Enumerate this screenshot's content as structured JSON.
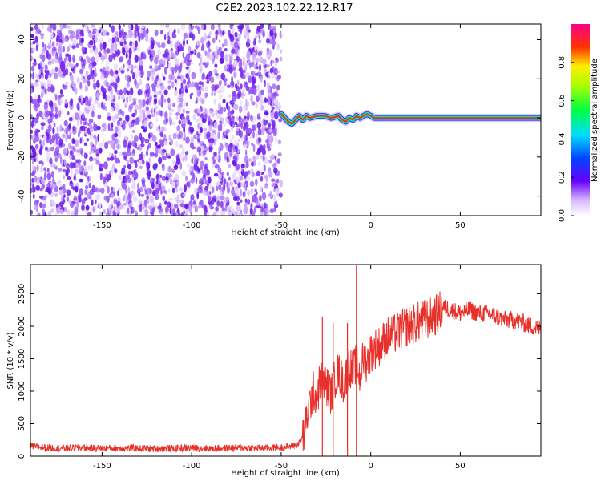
{
  "title": "C2E2.2023.102.22.12.R17",
  "colors": {
    "signal_line": "#e8302a",
    "snr_line": "#e8302a",
    "noise_dot": "#7b2cf0"
  },
  "chart_data": [
    {
      "type": "heatmap",
      "xlabel": "Height of straight line (km)",
      "ylabel": "Frequency (Hz)",
      "xlim": [
        -190,
        95
      ],
      "ylim": [
        -50,
        48
      ],
      "x_ticks": [
        -150,
        -100,
        -50,
        0,
        50
      ],
      "y_ticks": [
        -40,
        -20,
        0,
        20,
        40
      ],
      "noise_region_x": [
        -190,
        -50
      ],
      "signal_trace": {
        "x": [
          -50,
          -48,
          -46,
          -44,
          -42,
          -40,
          -38,
          -36,
          -34,
          -30,
          -26,
          -22,
          -18,
          -16,
          -14,
          -12,
          -10,
          -8,
          -6,
          -4,
          -2,
          0,
          2,
          5,
          10,
          20,
          40,
          60,
          80,
          95
        ],
        "frequency": [
          2,
          0,
          -2,
          -3,
          -1,
          1,
          -1,
          1,
          0,
          1,
          1,
          0,
          1,
          -1,
          -2,
          0,
          -1,
          1,
          0,
          1,
          2,
          1,
          0,
          0,
          0,
          0,
          0,
          0,
          0,
          0
        ]
      },
      "colorbar": {
        "label": "Normalized spectral amplitude",
        "ticks": [
          "0.0",
          "0.2",
          "0.4",
          "0.6",
          "0.8"
        ],
        "range": [
          0,
          1
        ]
      },
      "grid": false
    },
    {
      "type": "line",
      "xlabel": "Height of straight line (km)",
      "ylabel": "SNR (10 * v/v)",
      "xlim": [
        -190,
        95
      ],
      "ylim": [
        0,
        2950
      ],
      "x_ticks": [
        -150,
        -100,
        -50,
        0,
        50
      ],
      "y_ticks": [
        0,
        500,
        1000,
        1500,
        2000,
        2500
      ],
      "series": [
        {
          "x": [
            -190,
            -180,
            -170,
            -160,
            -150,
            -140,
            -130,
            -120,
            -110,
            -100,
            -90,
            -80,
            -70,
            -60,
            -55,
            -50,
            -45,
            -40,
            -37,
            -35,
            -32,
            -30,
            -28,
            -25,
            -22,
            -20,
            -18,
            -15,
            -12,
            -10,
            -8,
            -6,
            -5,
            -4,
            -2,
            0,
            2,
            5,
            8,
            10,
            15,
            20,
            25,
            30,
            35,
            38,
            40,
            45,
            50,
            55,
            60,
            65,
            70,
            75,
            80,
            85,
            90,
            95
          ],
          "y": [
            150,
            130,
            125,
            130,
            120,
            125,
            120,
            115,
            120,
            125,
            120,
            125,
            130,
            125,
            130,
            135,
            150,
            200,
            350,
            700,
            1000,
            900,
            1200,
            1100,
            950,
            1200,
            1300,
            1100,
            1400,
            1300,
            1450,
            1200,
            1400,
            1500,
            1450,
            1600,
            1650,
            1700,
            1800,
            1850,
            1900,
            2000,
            2050,
            2100,
            2150,
            2200,
            2300,
            2250,
            2200,
            2250,
            2200,
            2200,
            2150,
            2100,
            2100,
            2050,
            2000,
            1950
          ],
          "spikes": [
            {
              "x": -27,
              "y": 2150
            },
            {
              "x": -21,
              "y": 2050
            },
            {
              "x": -13,
              "y": 2050
            },
            {
              "x": -8,
              "y": 2950
            }
          ]
        }
      ],
      "grid": false
    }
  ]
}
